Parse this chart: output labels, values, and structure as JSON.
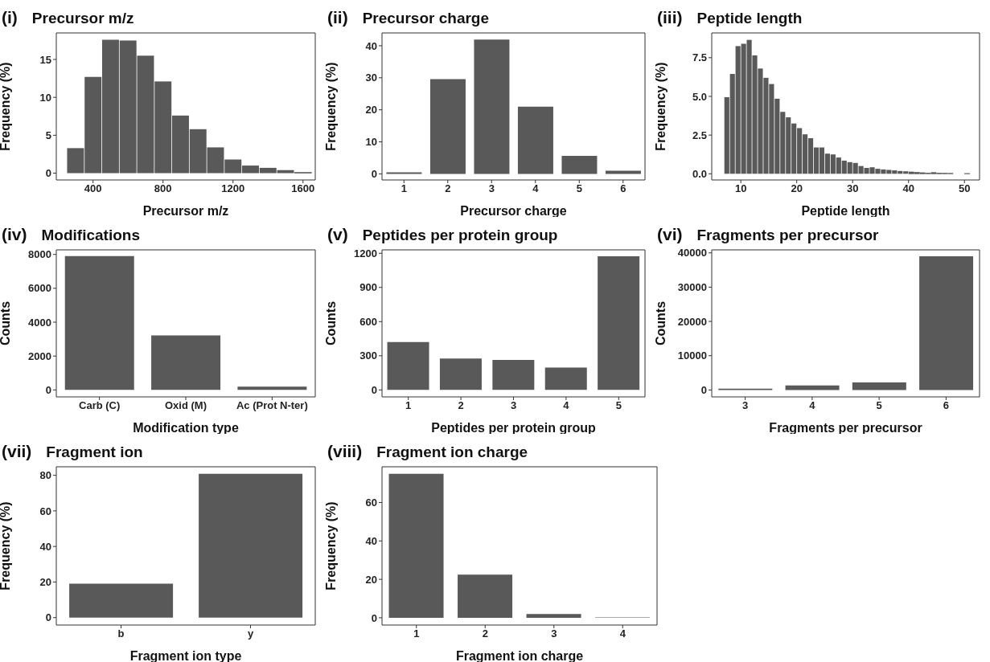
{
  "chart_data": [
    {
      "type": "histogram",
      "title": "Precursor m/z",
      "xlabel": "Precursor m/z",
      "ylabel": "Frequency (%)",
      "annotations": [
        "(i)"
      ],
      "bins": [
        250,
        350,
        450,
        550,
        650,
        750,
        850,
        950,
        1050,
        1150,
        1250,
        1350,
        1450,
        1550,
        1650
      ],
      "values": [
        3.3,
        12.7,
        17.6,
        17.5,
        15.5,
        12.1,
        7.6,
        5.8,
        3.4,
        1.8,
        1.0,
        0.7,
        0.4,
        0.1
      ],
      "color": "#595959",
      "xlim": [
        190,
        1670
      ],
      "xticks": [
        400,
        800,
        1200,
        1600
      ],
      "ylim": [
        -0.9,
        18.5
      ],
      "yticks": [
        0,
        5,
        10,
        15
      ],
      "grid": false
    },
    {
      "type": "bar",
      "title": "Precursor charge",
      "xlabel": "Precursor charge",
      "ylabel": "Frequency (%)",
      "annotations": [
        "(ii)"
      ],
      "categories": [
        "1",
        "2",
        "3",
        "4",
        "5",
        "6"
      ],
      "values": [
        0.5,
        29.6,
        41.9,
        21.0,
        5.6,
        1.0
      ],
      "color": "#595959",
      "ylim": [
        -1.9,
        44
      ],
      "yticks": [
        0,
        10,
        20,
        30,
        40
      ],
      "grid": false
    },
    {
      "type": "histogram",
      "title": "Peptide length",
      "xlabel": "Peptide length",
      "ylabel": "Frequency (%)",
      "annotations": [
        "(iii)"
      ],
      "bins": [
        7,
        8,
        9,
        10,
        11,
        12,
        13,
        14,
        15,
        16,
        17,
        18,
        19,
        20,
        21,
        22,
        23,
        24,
        25,
        26,
        27,
        28,
        29,
        30,
        31,
        32,
        33,
        34,
        35,
        36,
        37,
        38,
        39,
        40,
        41,
        42,
        43,
        44,
        45,
        46,
        47,
        48,
        49,
        50,
        51
      ],
      "values": [
        4.95,
        6.45,
        8.25,
        8.4,
        8.65,
        7.65,
        6.8,
        6.2,
        5.8,
        4.85,
        4.0,
        3.65,
        3.25,
        2.95,
        2.55,
        2.3,
        1.7,
        1.7,
        1.3,
        1.25,
        1.05,
        0.85,
        0.75,
        0.7,
        0.5,
        0.38,
        0.42,
        0.32,
        0.28,
        0.25,
        0.22,
        0.18,
        0.16,
        0.12,
        0.1,
        0.07,
        0.05,
        0.08,
        0.05,
        0.04,
        0.03,
        0,
        0,
        0.02
      ],
      "color": "#595959",
      "xlim": [
        4.8,
        52.7
      ],
      "xticks": [
        10,
        20,
        30,
        40,
        50
      ],
      "ylim": [
        -0.4,
        9.1
      ],
      "yticks": [
        {
          "value": 0,
          "label": "0.0"
        },
        {
          "value": 2.5,
          "label": "2.5"
        },
        {
          "value": 5,
          "label": "5.0"
        },
        {
          "value": 7.5,
          "label": "7.5"
        }
      ],
      "grid": false
    },
    {
      "type": "bar",
      "title": "Modifications",
      "xlabel": "Modification type",
      "ylabel": "Counts",
      "annotations": [
        "(iv)"
      ],
      "categories": [
        "Carb (C)",
        "Oxid (M)",
        "Ac (Prot N-ter)"
      ],
      "values": [
        7900,
        3220,
        200
      ],
      "color": "#595959",
      "ylim": [
        -410,
        8270
      ],
      "yticks": [
        0,
        2000,
        4000,
        6000,
        8000
      ],
      "grid": false
    },
    {
      "type": "bar",
      "title": "Peptides per protein group",
      "xlabel": "Peptides per protein group",
      "ylabel": "Counts",
      "annotations": [
        "(v)"
      ],
      "categories": [
        "1",
        "2",
        "3",
        "4",
        "5"
      ],
      "values": [
        420,
        275,
        264,
        196,
        1174
      ],
      "color": "#595959",
      "ylim": [
        -61,
        1230
      ],
      "yticks": [
        0,
        300,
        600,
        900,
        1200
      ],
      "grid": false
    },
    {
      "type": "bar",
      "title": "Fragments per precursor",
      "xlabel": "Fragments per precursor",
      "ylabel": "Counts",
      "annotations": [
        "(vi)"
      ],
      "categories": [
        "3",
        "4",
        "5",
        "6"
      ],
      "values": [
        400,
        1300,
        2200,
        39000
      ],
      "color": "#595959",
      "ylim": [
        -2020,
        40880
      ],
      "yticks": [
        0,
        10000,
        20000,
        30000,
        40000
      ],
      "grid": false
    },
    {
      "type": "bar",
      "title": "Fragment ion",
      "xlabel": "Fragment ion type",
      "ylabel": "Frequency (%)",
      "annotations": [
        "(vii)"
      ],
      "categories": [
        "b",
        "y"
      ],
      "values": [
        19.1,
        80.9
      ],
      "color": "#595959",
      "ylim": [
        -4.2,
        84.8
      ],
      "yticks": [
        0,
        20,
        40,
        60,
        80
      ],
      "grid": false
    },
    {
      "type": "bar",
      "title": "Fragment ion charge",
      "xlabel": "Fragment ion charge",
      "ylabel": "Frequency (%)",
      "annotations": [
        "(viii)"
      ],
      "categories": [
        "1",
        "2",
        "3",
        "4"
      ],
      "values": [
        74.9,
        22.4,
        2.0,
        0.2
      ],
      "color": "#595959",
      "ylim": [
        -3.8,
        78.6
      ],
      "yticks": [
        0,
        20,
        40,
        60
      ],
      "grid": false
    }
  ]
}
